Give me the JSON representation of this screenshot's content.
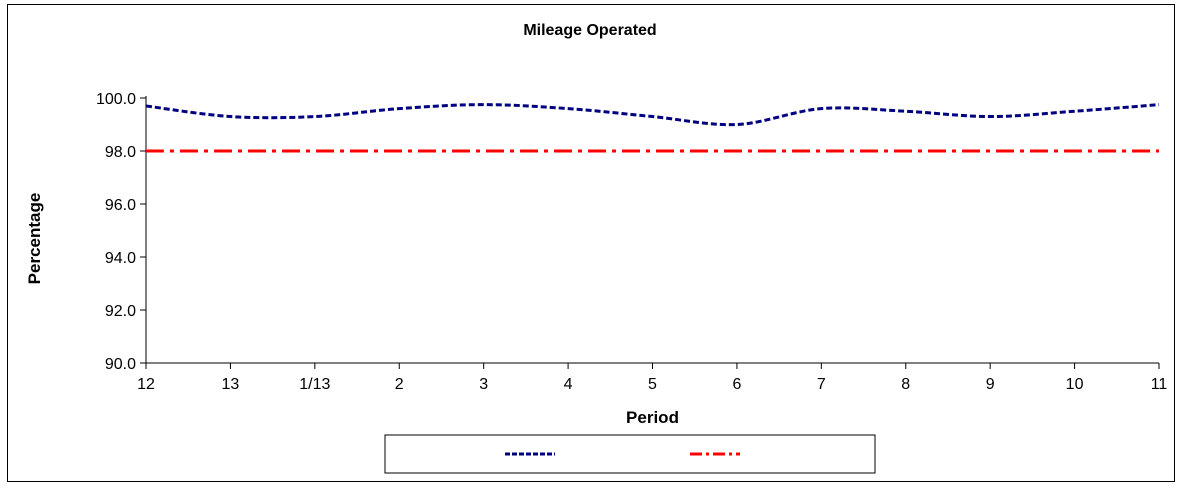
{
  "chart_data": {
    "type": "line",
    "title": "Mileage Operated",
    "xlabel": "Period",
    "ylabel": "Percentage",
    "categories": [
      "12",
      "13",
      "1/13",
      "2",
      "3",
      "4",
      "5",
      "6",
      "7",
      "8",
      "9",
      "10",
      "11"
    ],
    "ylim": [
      90.0,
      100.0
    ],
    "yticks": [
      "90.0",
      "92.0",
      "94.0",
      "96.0",
      "98.0",
      "100.0"
    ],
    "grid": false,
    "legend_position": "bottom",
    "series": [
      {
        "name": "",
        "values": [
          99.7,
          99.3,
          99.3,
          99.6,
          99.75,
          99.6,
          99.3,
          99.0,
          99.6,
          99.5,
          99.3,
          99.5,
          99.75
        ],
        "color": "#000080",
        "style": "dashed"
      },
      {
        "name": "",
        "values": [
          98.0,
          98.0,
          98.0,
          98.0,
          98.0,
          98.0,
          98.0,
          98.0,
          98.0,
          98.0,
          98.0,
          98.0,
          98.0
        ],
        "color": "#ff0000",
        "style": "dash-dot"
      }
    ]
  }
}
